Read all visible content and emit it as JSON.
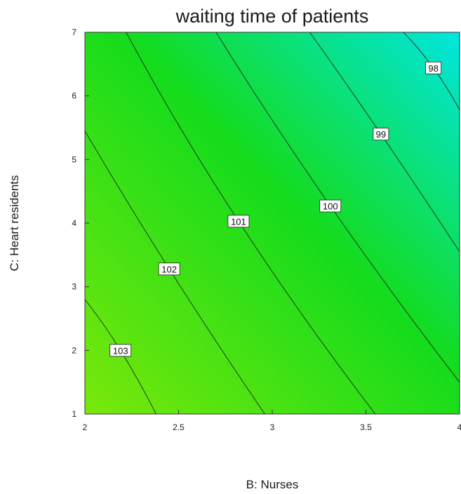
{
  "chart_data": {
    "type": "contour",
    "title": "waiting time of patients",
    "xlabel": "B: Nurses",
    "ylabel": "C: Heart residents",
    "xlim": [
      2,
      4
    ],
    "ylim": [
      1,
      7
    ],
    "xticks": [
      "2",
      "2.5",
      "3",
      "3.5",
      "4"
    ],
    "yticks": [
      "1",
      "2",
      "3",
      "4",
      "5",
      "6",
      "7"
    ],
    "grid": false,
    "colormap": {
      "low_value_color": "#00e6e0",
      "mid_color": "#14dc1c",
      "high_value_color": "#7ae80a"
    },
    "contours": [
      {
        "level": 103,
        "label": "103",
        "points": [
          [
            2.0,
            2.8
          ],
          [
            2.19,
            2.0
          ],
          [
            2.38,
            1.0
          ]
        ]
      },
      {
        "level": 102,
        "label": "102",
        "points": [
          [
            2.0,
            5.45
          ],
          [
            2.45,
            3.28
          ],
          [
            2.96,
            1.0
          ]
        ]
      },
      {
        "level": 101,
        "label": "101",
        "points": [
          [
            2.22,
            7.0
          ],
          [
            2.82,
            4.03
          ],
          [
            3.55,
            1.0
          ]
        ]
      },
      {
        "level": 100,
        "label": "100",
        "points": [
          [
            2.7,
            7.0
          ],
          [
            3.31,
            4.27
          ],
          [
            4.0,
            1.5
          ]
        ]
      },
      {
        "level": 99,
        "label": "99",
        "points": [
          [
            3.2,
            7.0
          ],
          [
            3.58,
            5.4
          ],
          [
            4.0,
            3.55
          ]
        ]
      },
      {
        "level": 98,
        "label": "98",
        "points": [
          [
            3.7,
            7.0
          ],
          [
            3.86,
            6.44
          ],
          [
            4.0,
            5.78
          ]
        ]
      }
    ]
  }
}
